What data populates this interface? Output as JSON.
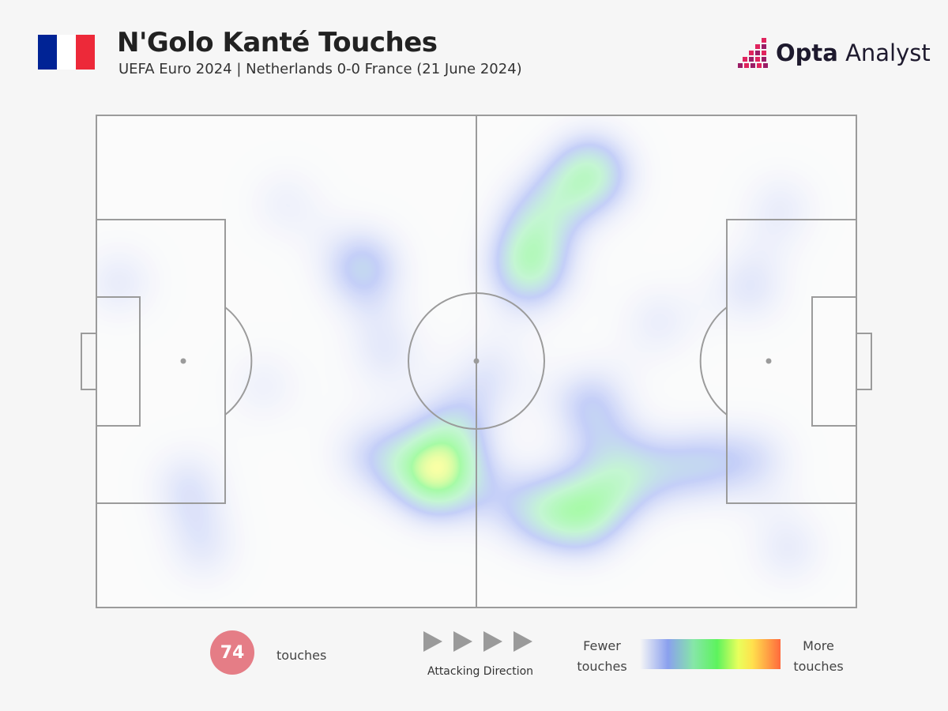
{
  "header": {
    "title": "N'Golo Kanté Touches",
    "subtitle": "UEFA Euro 2024 | Netherlands 0-0 France (21 June 2024)",
    "flag_colors": [
      "#002395",
      "#ffffff",
      "#ed2939"
    ],
    "logo": {
      "brand": "Opta",
      "product": "Analyst",
      "icon": "opta-analyst-logo-icon"
    }
  },
  "chart_data": {
    "type": "heatmap",
    "title": "N'Golo Kanté Touches",
    "pitch": {
      "length": 100,
      "width": 100,
      "line_color": "#9b9b9b"
    },
    "attacking_direction": "left-to-right",
    "hotspots": [
      {
        "x": 45,
        "y": 73,
        "intensity": 1.0
      },
      {
        "x": 47,
        "y": 64,
        "intensity": 0.45
      },
      {
        "x": 36,
        "y": 69,
        "intensity": 0.35
      },
      {
        "x": 64,
        "y": 81,
        "intensity": 0.78
      },
      {
        "x": 57,
        "y": 80,
        "intensity": 0.5
      },
      {
        "x": 70,
        "y": 73,
        "intensity": 0.55
      },
      {
        "x": 65,
        "y": 59,
        "intensity": 0.5
      },
      {
        "x": 79,
        "y": 71,
        "intensity": 0.45
      },
      {
        "x": 87,
        "y": 70,
        "intensity": 0.3
      },
      {
        "x": 57,
        "y": 31,
        "intensity": 0.78
      },
      {
        "x": 65,
        "y": 12,
        "intensity": 0.78
      },
      {
        "x": 58,
        "y": 20,
        "intensity": 0.45
      },
      {
        "x": 35,
        "y": 31,
        "intensity": 0.58
      },
      {
        "x": 38,
        "y": 48,
        "intensity": 0.25
      },
      {
        "x": 52,
        "y": 52,
        "intensity": 0.22
      },
      {
        "x": 86,
        "y": 35,
        "intensity": 0.28
      },
      {
        "x": 90,
        "y": 19,
        "intensity": 0.2
      },
      {
        "x": 12,
        "y": 75,
        "intensity": 0.28
      },
      {
        "x": 14,
        "y": 88,
        "intensity": 0.22
      },
      {
        "x": 3,
        "y": 34,
        "intensity": 0.22
      },
      {
        "x": 91,
        "y": 88,
        "intensity": 0.22
      },
      {
        "x": 25,
        "y": 18,
        "intensity": 0.12
      },
      {
        "x": 22,
        "y": 55,
        "intensity": 0.12
      },
      {
        "x": 74,
        "y": 42,
        "intensity": 0.18
      }
    ]
  },
  "legend": {
    "touch_count": "74",
    "touch_count_color": "#e57d86",
    "touch_label": "touches",
    "direction_label": "Attacking Direction",
    "scale_low_line1": "Fewer",
    "scale_low_line2": "touches",
    "scale_high_line1": "More",
    "scale_high_line2": "touches"
  }
}
